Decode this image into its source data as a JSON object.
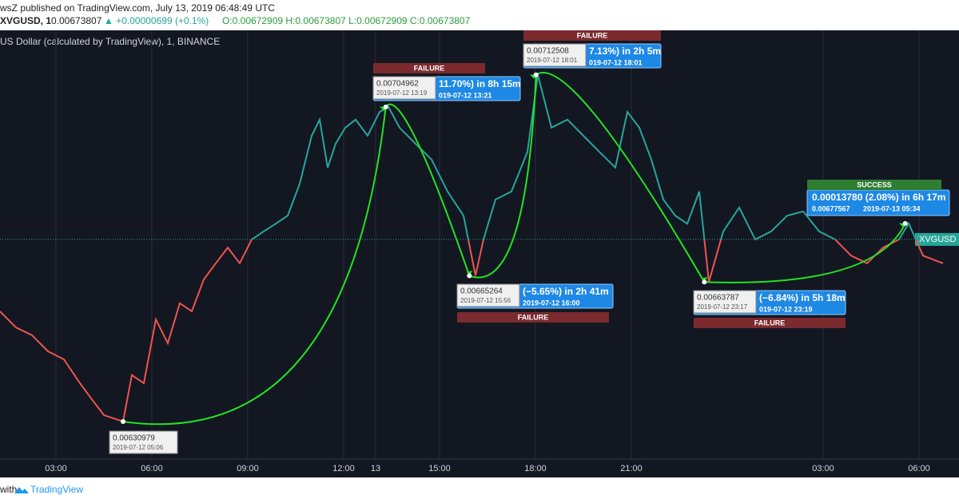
{
  "chart_data": {
    "type": "line",
    "published": "wsZ published on TradingView.com, July 13, 2019 06:48:49 UTC",
    "header_symbol": "XVGUSD, 1",
    "header_last": "0.00673807",
    "header_change": "▲ +0.00000699 (+0.1%)",
    "header_ohlc": "O:0.00672909 H:0.00673807 L:0.00672909 C:0.00673807",
    "subtitle": "US Dollar (calculated by TradingView), 1, BINANCE",
    "price_tag": "XVGUSD",
    "footer_prefix": "with",
    "footer_brand": "TradingView",
    "xlim": [
      1.25,
      31.125
    ],
    "ylim": [
      0.0062215,
      0.0073012
    ],
    "xticks": [
      {
        "value": 3,
        "label": "03:00"
      },
      {
        "value": 6,
        "label": "06:00"
      },
      {
        "value": 9,
        "label": "09:00"
      },
      {
        "value": 12,
        "label": "12:00"
      },
      {
        "value": 15,
        "label": "15:00"
      },
      {
        "value": 18,
        "label": "18:00"
      },
      {
        "value": 21,
        "label": "21:00"
      },
      13,
      {
        "value": 27,
        "label": "03:00"
      },
      {
        "value": 30,
        "label": "06:00"
      }
    ],
    "xtick_positions_note_free": null,
    "grid": true,
    "color_up": "#26a69a",
    "color_down": "#ef5350",
    "series": [
      {
        "name": "XVGUSD",
        "x": [
          1.25,
          1.75,
          2.25,
          2.75,
          3.25,
          3.75,
          4.125,
          4.5,
          5.1,
          5.375,
          5.75,
          6.125,
          6.5,
          6.875,
          7.25,
          7.625,
          8,
          8.375,
          8.75,
          9.125,
          9.5,
          9.875,
          10.25,
          10.625,
          11,
          11.25,
          11.5,
          11.75,
          12.05,
          12.375,
          12.75,
          13.125,
          13.4,
          13.75,
          14.25,
          14.75,
          15.25,
          15.75,
          16.125,
          16.375,
          16.75,
          17.25,
          17.75,
          18.075,
          18.5,
          19,
          19.5,
          20,
          20.5,
          20.875,
          21.25,
          21.625,
          22,
          22.375,
          22.75,
          23.125,
          23.425,
          23.875,
          24.375,
          24.875,
          25.375,
          25.875,
          26.375,
          26.875,
          27.375,
          27.875,
          28.375,
          28.875,
          29.375,
          29.675,
          30.125,
          30.75
        ],
        "values": [
          0.006569,
          0.006531,
          0.006513,
          0.006475,
          0.006456,
          0.0064,
          0.006362,
          0.006325,
          0.00631,
          0.006419,
          0.0064,
          0.00655,
          0.006494,
          0.006588,
          0.006569,
          0.006644,
          0.006682,
          0.006719,
          0.006682,
          0.006738,
          0.006757,
          0.006775,
          0.006794,
          0.006869,
          0.006982,
          0.00702,
          0.006907,
          0.006963,
          0.007001,
          0.00702,
          0.006982,
          0.007038,
          0.00705,
          0.007001,
          0.006963,
          0.006926,
          0.006851,
          0.006794,
          0.006653,
          0.006738,
          0.006832,
          0.006851,
          0.006944,
          0.007125,
          0.007001,
          0.00702,
          0.006982,
          0.006944,
          0.006907,
          0.007038,
          0.007001,
          0.006926,
          0.006832,
          0.006794,
          0.006775,
          0.006851,
          0.006638,
          0.006757,
          0.006813,
          0.006738,
          0.006757,
          0.006794,
          0.006804,
          0.006757,
          0.006738,
          0.0067,
          0.006682,
          0.006719,
          0.006738,
          0.006776,
          0.0067,
          0.006682
        ]
      }
    ],
    "annotations": [
      {
        "price": "0.00630979",
        "date": "2019-07-12 05:06"
      },
      {
        "price": "0.00704962",
        "date": "2019-07-12 13:19",
        "change": "11.70%) in 8h 15m",
        "end": "019-07-12  13:21",
        "status": "FAILURE"
      },
      {
        "price": "0.00665264",
        "date": "2019-07-12 15:56",
        "change": "(−5.65%) in 2h 41m",
        "end": "2019-07-12  16:00",
        "status": "FAILURE"
      },
      {
        "price": "0.00712508",
        "date": "2019-07-12 18:01",
        "change": "7.13%) in 2h 5m",
        "end": "019-07-12  18:01",
        "status": "FAILURE"
      },
      {
        "price": "0.00663787",
        "date": "2019-07-12 23:17",
        "change": "(−6.84%) in 5h 18m",
        "end": "019-07-12  23:19",
        "status": "FAILURE"
      },
      {
        "price": "0.00677567",
        "change": "0.00013780 (2.08%) in 6h 17m",
        "end": "2019-07-13  05:34",
        "status": "SUCCESS"
      }
    ]
  }
}
